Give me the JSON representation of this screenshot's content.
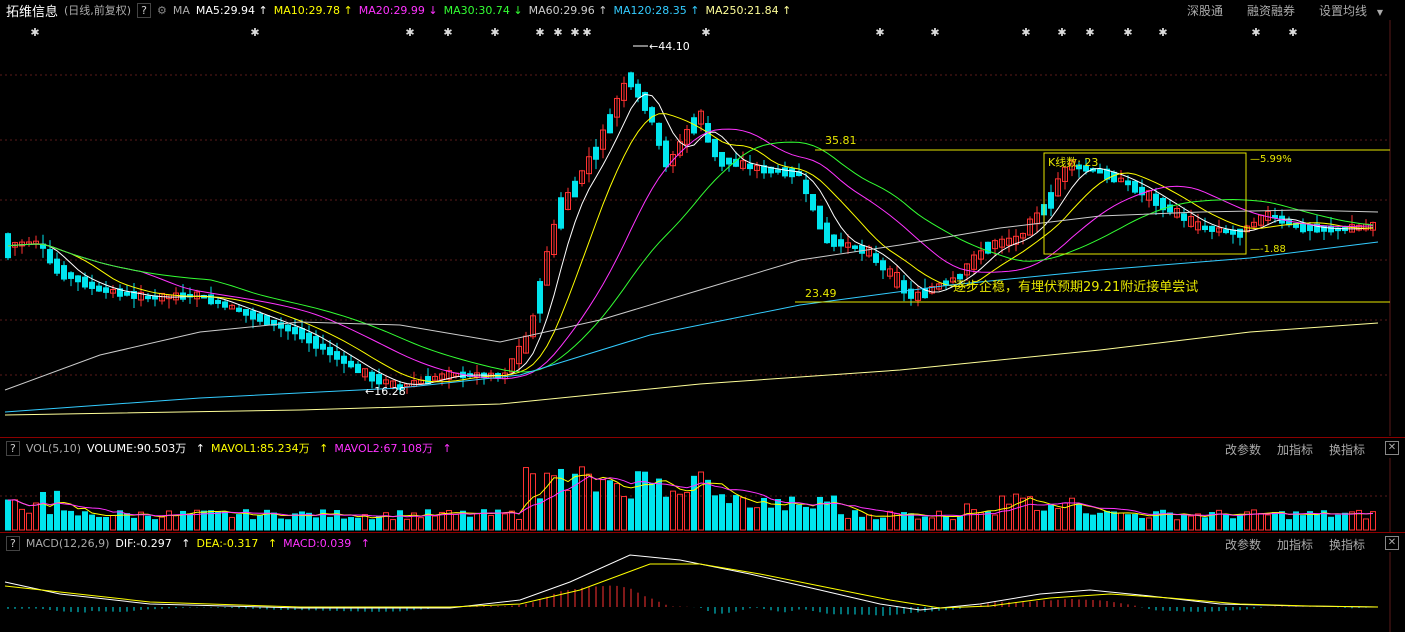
{
  "header": {
    "stock_name": "拓维信息",
    "period": "(日线,前复权)",
    "help": "?",
    "ma_label": "MA",
    "ma_items": [
      {
        "text": "MA5:29.94",
        "arrow": "↑",
        "color": "#ffffff"
      },
      {
        "text": "MA10:29.78",
        "arrow": "↑",
        "color": "#ffff00"
      },
      {
        "text": "MA20:29.99",
        "arrow": "↓",
        "color": "#ff33ff"
      },
      {
        "text": "MA30:30.74",
        "arrow": "↓",
        "color": "#33ff33"
      },
      {
        "text": "MA60:29.96",
        "arrow": "↑",
        "color": "#cccccc"
      },
      {
        "text": "MA120:28.35",
        "arrow": "↑",
        "color": "#33ccff"
      },
      {
        "text": "MA250:21.84",
        "arrow": "↑",
        "color": "#ffff99"
      }
    ],
    "right_buttons": [
      "深股通",
      "融资融券",
      "设置均线"
    ]
  },
  "main_chart": {
    "annotations": {
      "high": "44.10",
      "low": "16.28",
      "level_high": "35.81",
      "level_low": "23.49",
      "box_label": "K线数: 23",
      "box_pct_up": "5.99%",
      "box_pct_down": "-1.88",
      "comment": "逐步企稳，有埋伏预期29.21附近接单尝试"
    },
    "up_color": "#ff3232",
    "down_color": "#00e5ee"
  },
  "volume_panel": {
    "title": "VOL(5,10)",
    "volume": "VOLUME:90.503万",
    "mavol1": "MAVOL1:85.234万",
    "mavol2": "MAVOL2:67.108万",
    "buttons": [
      "改参数",
      "加指标",
      "换指标"
    ],
    "close": "✕"
  },
  "macd_panel": {
    "title": "MACD(12,26,9)",
    "dif": "DIF:-0.297",
    "dea": "DEA:-0.317",
    "macd": "MACD:0.039",
    "buttons": [
      "改参数",
      "加指标",
      "换指标"
    ],
    "close": "✕"
  }
}
